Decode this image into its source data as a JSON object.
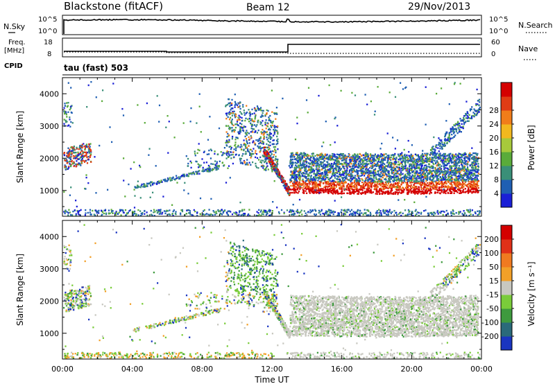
{
  "header": {
    "station": "Blackstone (fitACF)",
    "beam": "Beam 12",
    "date": "29/Nov/2013"
  },
  "noise_panel": {
    "left_label": "N.Sky",
    "right_label": "N.Search",
    "ticks": [
      "10^5",
      "10^0"
    ],
    "series": [
      {
        "name": "N.Sky"
      },
      {
        "name": "N.Search"
      }
    ]
  },
  "freq_panel": {
    "left_label_line1": "Freq.",
    "left_label_line2": "[MHz]",
    "left_ticks": [
      "18",
      "8"
    ],
    "right_label": "Nave",
    "right_ticks": [
      "60",
      "0"
    ],
    "cpid_label": "CPID",
    "cpid_value": "tau (fast) 503"
  },
  "chart_data": [
    {
      "type": "heatmap",
      "panel": "power",
      "ylabel": "Slant Range [km]",
      "xlabel": "",
      "ylim": [
        200,
        4500
      ],
      "yticks": [
        "1000",
        "2000",
        "3000",
        "4000"
      ],
      "xlim_hours": [
        0,
        24
      ],
      "colorbar_label": "Power [dB]",
      "colorbar_ticks": [
        "4",
        "8",
        "12",
        "16",
        "20",
        "24",
        "28"
      ],
      "colors": [
        "#1a1fd6",
        "#1f5fb3",
        "#3a8f78",
        "#5aab3a",
        "#a7c93b",
        "#f2b81e",
        "#f07d1a",
        "#e03c14",
        "#d40000"
      ]
    },
    {
      "type": "heatmap",
      "panel": "velocity",
      "ylabel": "Slant Range [km]",
      "xlabel": "Time UT",
      "ylim": [
        200,
        4500
      ],
      "yticks": [
        "1000",
        "2000",
        "3000",
        "4000"
      ],
      "xticks": [
        "00:00",
        "04:00",
        "08:00",
        "12:00",
        "16:00",
        "20:00",
        "00:00"
      ],
      "xlim_hours": [
        0,
        24
      ],
      "colorbar_label": "Velocity [m s⁻¹]",
      "colorbar_ticks": [
        "200",
        "100",
        "50",
        "15",
        "-15",
        "-50",
        "-100",
        "-200"
      ],
      "colors": [
        "#1a35c0",
        "#2a6a7a",
        "#3e9a3e",
        "#7acc3a",
        "#c8c8c0",
        "#f2a028",
        "#f07a20",
        "#e03018",
        "#d40000"
      ]
    }
  ]
}
